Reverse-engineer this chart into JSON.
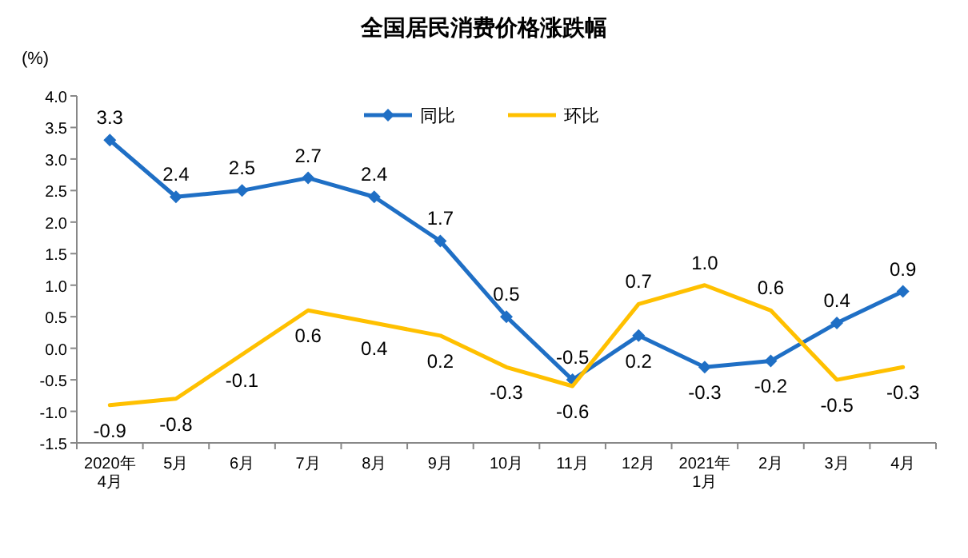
{
  "chart_data": {
    "type": "line",
    "title": "全国居民消费价格涨跌幅",
    "ylabel": "(%)",
    "categories": [
      "2020年\n4月",
      "5月",
      "6月",
      "7月",
      "8月",
      "9月",
      "10月",
      "11月",
      "12月",
      "2021年\n1月",
      "2月",
      "3月",
      "4月"
    ],
    "series": [
      {
        "name": "同比",
        "color": "#1f6fc5",
        "marker": "diamond",
        "values": [
          3.3,
          2.4,
          2.5,
          2.7,
          2.4,
          1.7,
          0.5,
          -0.5,
          0.2,
          -0.3,
          -0.2,
          0.4,
          0.9
        ],
        "value_labels": [
          "3.3",
          "2.4",
          "2.5",
          "2.7",
          "2.4",
          "1.7",
          "0.5",
          "-0.5",
          "0.2",
          "-0.3",
          "-0.2",
          "0.4",
          "0.9"
        ]
      },
      {
        "name": "环比",
        "color": "#ffc000",
        "marker": "none",
        "values": [
          -0.9,
          -0.8,
          -0.1,
          0.6,
          0.4,
          0.2,
          -0.3,
          -0.6,
          0.7,
          1.0,
          0.6,
          -0.5,
          -0.3
        ],
        "value_labels": [
          "-0.9",
          "-0.8",
          "-0.1",
          "0.6",
          "0.4",
          "0.2",
          "-0.3",
          "-0.6",
          "0.7",
          "1.0",
          "0.6",
          "-0.5",
          "-0.3"
        ]
      }
    ],
    "ylim": [
      -1.5,
      4.0
    ],
    "yticks": [
      {
        "value": -1.5,
        "label": "-1.5"
      },
      {
        "value": -1,
        "label": "-1.0"
      },
      {
        "value": -0.5,
        "label": "-0.5"
      },
      {
        "value": 0,
        "label": "0.0"
      },
      {
        "value": 0.5,
        "label": "0.5"
      },
      {
        "value": 1,
        "label": "1.0"
      },
      {
        "value": 1.5,
        "label": "1.5"
      },
      {
        "value": 2,
        "label": "2.0"
      },
      {
        "value": 2.5,
        "label": "2.5"
      },
      {
        "value": 3,
        "label": "3.0"
      },
      {
        "value": 3.5,
        "label": "3.5"
      },
      {
        "value": 4,
        "label": "4.0"
      }
    ],
    "legend": "top",
    "grid": false
  }
}
